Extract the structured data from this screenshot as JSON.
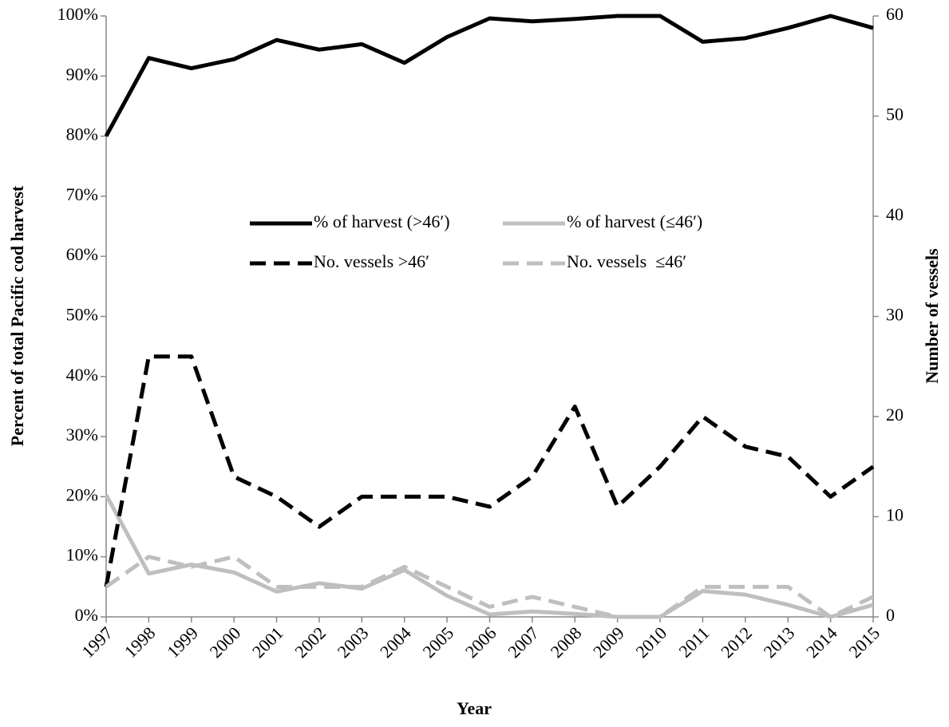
{
  "chart_data": {
    "type": "line",
    "x_label": "Year",
    "y_label": "Percent of total Pacific cod harvest",
    "y2_label": "Number of vessels",
    "categories": [
      "1997",
      "1998",
      "1999",
      "2000",
      "2001",
      "2002",
      "2003",
      "2004",
      "2005",
      "2006",
      "2007",
      "2008",
      "2009",
      "2010",
      "2011",
      "2012",
      "2013",
      "2014",
      "2015"
    ],
    "ylim": [
      0,
      100
    ],
    "yticks": [
      {
        "value": 0,
        "label": "0%"
      },
      {
        "value": 10,
        "label": "10%"
      },
      {
        "value": 20,
        "label": "20%"
      },
      {
        "value": 30,
        "label": "30%"
      },
      {
        "value": 40,
        "label": "40%"
      },
      {
        "value": 50,
        "label": "50%"
      },
      {
        "value": 60,
        "label": "60%"
      },
      {
        "value": 70,
        "label": "70%"
      },
      {
        "value": 80,
        "label": "80%"
      },
      {
        "value": 90,
        "label": "90%"
      },
      {
        "value": 100,
        "label": "100%"
      }
    ],
    "y2lim": [
      0,
      60
    ],
    "y2ticks": [
      0,
      10,
      20,
      30,
      40,
      50,
      60
    ],
    "series": [
      {
        "name": "% of harvest (>46′)",
        "color": "#000000",
        "style": "solid",
        "values": [
          80,
          93,
          91.3,
          92.8,
          96,
          94.4,
          95.3,
          92.2,
          96.5,
          99.6,
          99.1,
          99.5,
          100,
          100,
          95.7,
          96.3,
          98,
          100,
          98
        ]
      },
      {
        "name": "% of harvest (≤46′)",
        "color": "#bfbfbf",
        "style": "solid",
        "values": [
          20.3,
          7.2,
          8.7,
          7.4,
          4.2,
          5.6,
          4.7,
          7.8,
          3.5,
          0.4,
          0.9,
          0.5,
          0,
          0,
          4.3,
          3.7,
          2,
          0,
          2
        ]
      },
      {
        "name": "No. vessels >46′",
        "color": "#000000",
        "style": "dashed",
        "axis": "y2",
        "values": [
          3,
          26,
          26,
          14,
          12,
          9,
          12,
          12,
          12,
          11,
          14,
          21,
          11,
          15,
          20,
          17,
          16,
          12,
          15
        ]
      },
      {
        "name": "No. vessels  ≤46′",
        "color": "#bfbfbf",
        "style": "dashed",
        "axis": "y2",
        "values": [
          3,
          6,
          5,
          6,
          3,
          3,
          3,
          5,
          3,
          1,
          2,
          1,
          0,
          0,
          3,
          3,
          3,
          0,
          2
        ]
      }
    ]
  }
}
